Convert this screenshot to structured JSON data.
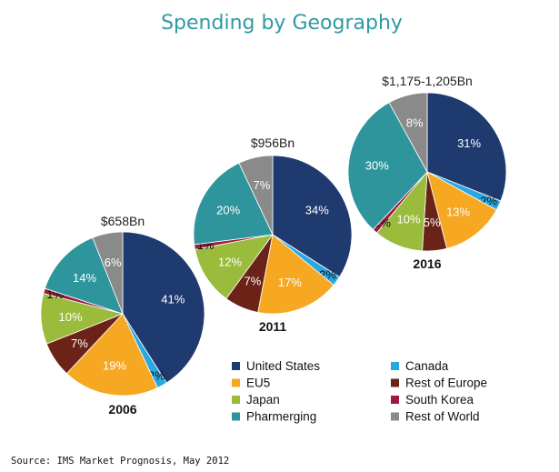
{
  "chart_data": {
    "type": "pie",
    "title": "Spending by Geography",
    "source": "Source: IMS Market Prognosis, May 2012",
    "categories": [
      "United States",
      "Canada",
      "EU5",
      "Rest of Europe",
      "Japan",
      "South Korea",
      "Pharmerging",
      "Rest of World"
    ],
    "colors": [
      "#1f3a6e",
      "#29a8e0",
      "#f7a823",
      "#6b2317",
      "#9bbb3c",
      "#9e1a3c",
      "#2e959c",
      "#8a8a8a"
    ],
    "series": [
      {
        "name": "2006",
        "total": "$658Bn",
        "values": [
          41,
          2,
          19,
          7,
          10,
          1,
          14,
          6
        ]
      },
      {
        "name": "2011",
        "total": "$956Bn",
        "values": [
          34,
          2,
          17,
          7,
          12,
          1,
          20,
          7
        ]
      },
      {
        "name": "2016",
        "total": "$1,175-1,205Bn",
        "values": [
          31,
          2,
          13,
          5,
          10,
          1,
          30,
          8
        ]
      }
    ],
    "legend": {
      "placement": "bottom-right",
      "columns": [
        [
          "United States",
          "EU5",
          "Japan",
          "Pharmerging"
        ],
        [
          "Canada",
          "Rest of Europe",
          "South Korea",
          "Rest of World"
        ]
      ]
    }
  }
}
